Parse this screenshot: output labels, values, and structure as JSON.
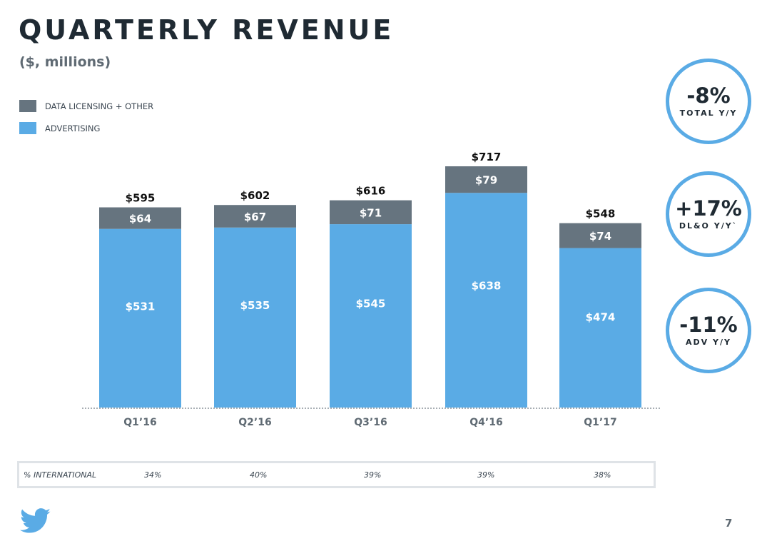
{
  "title": "QUARTERLY REVENUE",
  "subtitle": "($, millions)",
  "legend": [
    {
      "label": "DATA LICENSING + OTHER",
      "color": "#66747f"
    },
    {
      "label": "ADVERTISING",
      "color": "#5aabe5"
    }
  ],
  "chart_data": {
    "type": "bar",
    "stacked": true,
    "title": "QUARTERLY REVENUE",
    "subtitle": "($, millions)",
    "categories": [
      "Q1’16",
      "Q2’16",
      "Q3’16",
      "Q4’16",
      "Q1’17"
    ],
    "series": [
      {
        "name": "ADVERTISING",
        "values": [
          531,
          535,
          545,
          638,
          474
        ],
        "labels": [
          "$531",
          "$535",
          "$545",
          "$638",
          "$474"
        ],
        "color": "#5aabe5"
      },
      {
        "name": "DATA LICENSING + OTHER",
        "values": [
          64,
          67,
          71,
          79,
          74
        ],
        "labels": [
          "$64",
          "$67",
          "$71",
          "$79",
          "$74"
        ],
        "color": "#66747f"
      }
    ],
    "totals": [
      595,
      602,
      616,
      717,
      548
    ],
    "total_labels": [
      "$595",
      "$602",
      "$616",
      "$717",
      "$548"
    ],
    "ylim": [
      0,
      717
    ]
  },
  "kpis": [
    {
      "value": "-8%",
      "label": "TOTAL Y/Y"
    },
    {
      "value": "+17%",
      "label": "DL&O Y/Y`"
    },
    {
      "value": "-11%",
      "label": "ADV Y/Y"
    }
  ],
  "international": {
    "label": "% INTERNATIONAL",
    "values": [
      "34%",
      "40%",
      "39%",
      "39%",
      "38%"
    ]
  },
  "page_number": "7",
  "colors": {
    "accent": "#5aabe5",
    "dark": "#66747f"
  }
}
